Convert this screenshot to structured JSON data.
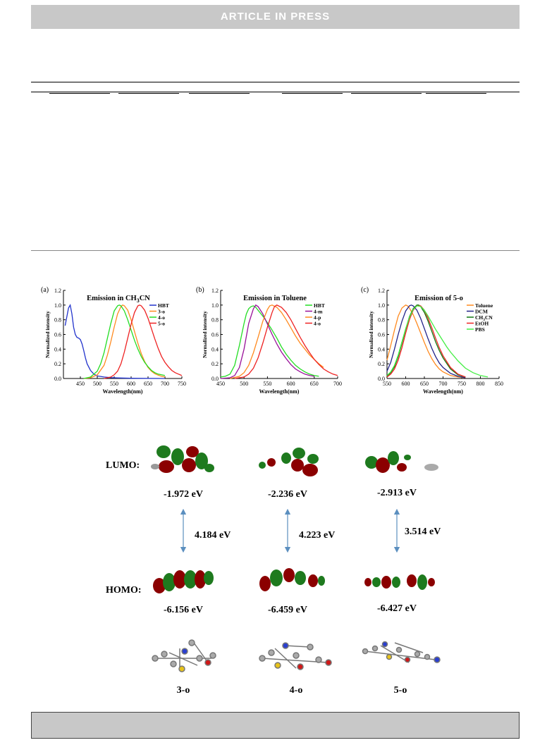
{
  "banner": {
    "text": "ARTICLE IN PRESS"
  },
  "chart_data": [
    {
      "type": "line",
      "panel_label": "(a)",
      "title_parts": [
        "Emission in CH",
        "3",
        "CN"
      ],
      "xlabel": "Wavelength(nm)",
      "ylabel": "Normalized intensity",
      "xlim": [
        400,
        750
      ],
      "ylim": [
        0,
        1.2
      ],
      "xticks": [
        450,
        500,
        550,
        600,
        650,
        700,
        750
      ],
      "yticks": [
        "0.0",
        "0.2",
        "0.4",
        "0.6",
        "0.8",
        "1.0",
        "1.2"
      ],
      "legend": "right",
      "series": [
        {
          "name": "HBT",
          "color": "#2233cc",
          "x": [
            405,
            410,
            415,
            420,
            425,
            430,
            435,
            440,
            445,
            450,
            455,
            460,
            465,
            470,
            480,
            490,
            500,
            520,
            540,
            560,
            600,
            700
          ],
          "y": [
            0.72,
            0.84,
            0.96,
            1.0,
            0.88,
            0.7,
            0.6,
            0.56,
            0.55,
            0.53,
            0.47,
            0.38,
            0.28,
            0.2,
            0.11,
            0.06,
            0.035,
            0.02,
            0.012,
            0.008,
            0.003,
            0.0
          ]
        },
        {
          "name": "3-o",
          "color": "#ff8a1f",
          "x": [
            460,
            480,
            500,
            520,
            530,
            540,
            550,
            560,
            570,
            575,
            580,
            590,
            600,
            610,
            620,
            630,
            640,
            650,
            660,
            670,
            680,
            690,
            700
          ],
          "y": [
            0.0,
            0.01,
            0.05,
            0.18,
            0.32,
            0.5,
            0.7,
            0.88,
            0.98,
            1.0,
            0.99,
            0.93,
            0.8,
            0.64,
            0.48,
            0.34,
            0.23,
            0.15,
            0.1,
            0.065,
            0.045,
            0.03,
            0.02
          ]
        },
        {
          "name": "4-o",
          "color": "#22dd22",
          "x": [
            460,
            480,
            500,
            510,
            520,
            530,
            540,
            550,
            560,
            565,
            570,
            580,
            590,
            600,
            610,
            620,
            630,
            640,
            650,
            660,
            670,
            680,
            690,
            700
          ],
          "y": [
            0.0,
            0.02,
            0.1,
            0.2,
            0.35,
            0.55,
            0.75,
            0.92,
            0.99,
            1.0,
            0.99,
            0.92,
            0.8,
            0.66,
            0.52,
            0.4,
            0.3,
            0.22,
            0.16,
            0.11,
            0.08,
            0.06,
            0.05,
            0.04
          ]
        },
        {
          "name": "5-o",
          "color": "#ee2222",
          "x": [
            520,
            540,
            550,
            560,
            570,
            580,
            590,
            600,
            610,
            620,
            625,
            630,
            640,
            650,
            660,
            670,
            680,
            690,
            700,
            710,
            720,
            730,
            740,
            750
          ],
          "y": [
            0.0,
            0.02,
            0.05,
            0.1,
            0.2,
            0.36,
            0.55,
            0.74,
            0.9,
            0.99,
            1.0,
            0.99,
            0.93,
            0.82,
            0.68,
            0.54,
            0.41,
            0.3,
            0.22,
            0.16,
            0.11,
            0.08,
            0.06,
            0.04
          ]
        }
      ]
    },
    {
      "type": "line",
      "panel_label": "(b)",
      "title_parts": [
        "Emission in Toluene"
      ],
      "xlabel": "Wavelength(nm)",
      "ylabel": "Normalized intensity",
      "xlim": [
        450,
        700
      ],
      "ylim": [
        0,
        1.2
      ],
      "xticks": [
        450,
        500,
        550,
        600,
        650,
        700
      ],
      "yticks": [
        "0.0",
        "0.2",
        "0.4",
        "0.6",
        "0.8",
        "1.0",
        "1.2"
      ],
      "legend": "right",
      "series": [
        {
          "name": "HBT",
          "color": "#22dd22",
          "x": [
            450,
            460,
            470,
            480,
            490,
            500,
            505,
            510,
            515,
            520,
            525,
            530,
            540,
            550,
            560,
            570,
            580,
            590,
            600,
            610,
            620,
            630,
            640,
            650,
            660
          ],
          "y": [
            0.02,
            0.03,
            0.06,
            0.18,
            0.45,
            0.75,
            0.88,
            0.95,
            0.98,
            0.99,
            0.97,
            0.93,
            0.85,
            0.76,
            0.66,
            0.55,
            0.43,
            0.33,
            0.25,
            0.18,
            0.13,
            0.09,
            0.06,
            0.04,
            0.03
          ]
        },
        {
          "name": "4-m",
          "color": "#991199",
          "x": [
            450,
            470,
            480,
            490,
            500,
            510,
            520,
            525,
            530,
            540,
            550,
            560,
            570,
            580,
            590,
            600,
            610,
            620,
            630,
            640,
            650
          ],
          "y": [
            0.0,
            0.01,
            0.04,
            0.15,
            0.4,
            0.75,
            0.95,
            1.0,
            0.98,
            0.88,
            0.74,
            0.6,
            0.47,
            0.36,
            0.27,
            0.19,
            0.13,
            0.09,
            0.06,
            0.04,
            0.03
          ]
        },
        {
          "name": "4-p",
          "color": "#ff8a1f",
          "x": [
            470,
            490,
            500,
            510,
            520,
            530,
            540,
            550,
            555,
            560,
            570,
            580,
            590,
            600,
            610,
            620,
            630,
            640,
            650,
            660,
            670
          ],
          "y": [
            0.0,
            0.03,
            0.08,
            0.18,
            0.35,
            0.56,
            0.78,
            0.94,
            0.99,
            1.0,
            0.97,
            0.9,
            0.8,
            0.69,
            0.58,
            0.48,
            0.4,
            0.32,
            0.26,
            0.2,
            0.15
          ]
        },
        {
          "name": "4-o",
          "color": "#ee2222",
          "x": [
            480,
            500,
            510,
            520,
            530,
            540,
            550,
            560,
            565,
            570,
            580,
            590,
            600,
            610,
            620,
            630,
            640,
            650,
            660,
            670,
            680,
            690,
            700
          ],
          "y": [
            0.0,
            0.02,
            0.06,
            0.14,
            0.28,
            0.48,
            0.7,
            0.9,
            0.98,
            1.0,
            0.97,
            0.9,
            0.8,
            0.68,
            0.56,
            0.45,
            0.35,
            0.26,
            0.19,
            0.13,
            0.09,
            0.06,
            0.04
          ]
        }
      ]
    },
    {
      "type": "line",
      "panel_label": "(c)",
      "title_parts": [
        "Emission of 5-o"
      ],
      "xlabel": "Wavelength(nm)",
      "ylabel": "Normalized intensity",
      "xlim": [
        550,
        850
      ],
      "ylim": [
        0,
        1.2
      ],
      "xticks": [
        550,
        600,
        650,
        700,
        750,
        800,
        850
      ],
      "yticks": [
        "0.0",
        "0.2",
        "0.4",
        "0.6",
        "0.8",
        "1.0",
        "1.2"
      ],
      "legend": "right",
      "series": [
        {
          "name": "Toluene",
          "color": "#ff8a1f",
          "x": [
            550,
            560,
            570,
            580,
            590,
            600,
            605,
            610,
            620,
            630,
            640,
            650,
            660,
            670,
            680,
            690,
            700,
            720,
            740,
            760
          ],
          "y": [
            0.25,
            0.45,
            0.66,
            0.85,
            0.96,
            1.0,
            0.99,
            0.96,
            0.87,
            0.75,
            0.62,
            0.49,
            0.37,
            0.27,
            0.19,
            0.13,
            0.09,
            0.04,
            0.02,
            0.01
          ]
        },
        {
          "name": "DCM",
          "color": "#222288",
          "x": [
            550,
            560,
            570,
            580,
            590,
            600,
            610,
            615,
            620,
            630,
            640,
            650,
            660,
            670,
            680,
            690,
            700,
            720,
            740,
            760
          ],
          "y": [
            0.1,
            0.22,
            0.4,
            0.6,
            0.78,
            0.92,
            0.99,
            1.0,
            0.99,
            0.93,
            0.82,
            0.68,
            0.54,
            0.41,
            0.3,
            0.21,
            0.15,
            0.07,
            0.03,
            0.01
          ]
        },
        {
          "name": "CH3CN",
          "color": "#117711",
          "x": [
            550,
            560,
            570,
            580,
            590,
            600,
            610,
            620,
            630,
            635,
            640,
            650,
            660,
            670,
            680,
            690,
            700,
            720,
            740,
            760
          ],
          "y": [
            0.03,
            0.08,
            0.16,
            0.3,
            0.48,
            0.67,
            0.84,
            0.95,
            1.0,
            1.0,
            0.98,
            0.9,
            0.78,
            0.64,
            0.5,
            0.38,
            0.28,
            0.13,
            0.05,
            0.02
          ]
        },
        {
          "name": "EtOH",
          "color": "#ee2222",
          "x": [
            550,
            560,
            570,
            580,
            590,
            600,
            610,
            620,
            630,
            640,
            650,
            660,
            670,
            680,
            690,
            700,
            720,
            740,
            760
          ],
          "y": [
            0.02,
            0.06,
            0.13,
            0.25,
            0.42,
            0.62,
            0.8,
            0.93,
            0.99,
            0.99,
            0.93,
            0.82,
            0.69,
            0.55,
            0.42,
            0.31,
            0.15,
            0.06,
            0.02
          ]
        },
        {
          "name": "PBS",
          "color": "#44ee44",
          "x": [
            550,
            560,
            570,
            580,
            590,
            600,
            610,
            620,
            630,
            640,
            650,
            660,
            670,
            680,
            690,
            700,
            710,
            720,
            740,
            760,
            780,
            800,
            820
          ],
          "y": [
            0.04,
            0.09,
            0.18,
            0.32,
            0.5,
            0.68,
            0.83,
            0.94,
            0.99,
            0.98,
            0.93,
            0.85,
            0.76,
            0.67,
            0.59,
            0.51,
            0.43,
            0.36,
            0.24,
            0.14,
            0.08,
            0.04,
            0.02
          ]
        }
      ]
    }
  ],
  "orbitals": {
    "lumo_label": "LUMO:",
    "homo_label": "HOMO:",
    "columns": [
      {
        "lumo_energy": "-1.972 eV",
        "gap": "4.184 eV",
        "homo_energy": "-6.156 eV",
        "compound": "3-o"
      },
      {
        "lumo_energy": "-2.236 eV",
        "gap": "4.223 eV",
        "homo_energy": "-6.459 eV",
        "compound": "4-o"
      },
      {
        "lumo_energy": "-2.913 eV",
        "gap": "3.514 eV",
        "homo_energy": "-6.427 eV",
        "compound": "5-o"
      }
    ]
  },
  "colors": {
    "banner": "#c8c8c8",
    "lobe_red": "#8b0000",
    "lobe_green": "#1e7a1e",
    "arrow": "#5b8fbf",
    "sulfur": "#e6c21a",
    "nitrogen": "#2a3fd0",
    "oxygen": "#d01818"
  }
}
